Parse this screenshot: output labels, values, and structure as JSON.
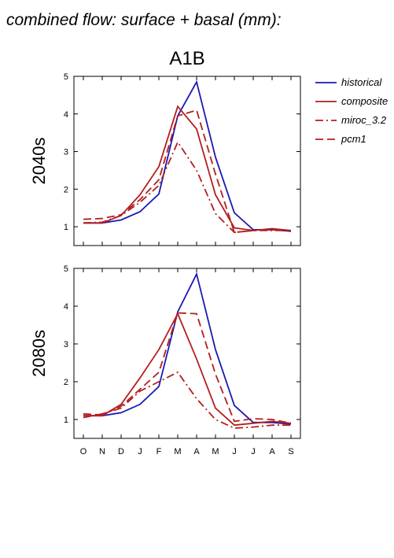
{
  "figure": {
    "title": "combined flow: surface + basal (mm):",
    "scenario": "A1B"
  },
  "legend": {
    "entries": [
      {
        "name": "historical",
        "color": "#1a1ab4",
        "dash": "solid"
      },
      {
        "name": "composite",
        "color": "#b41e1e",
        "dash": "solid"
      },
      {
        "name": "miroc_3.2",
        "color": "#b41e1e",
        "dash": "dashdot"
      },
      {
        "name": "pcm1",
        "color": "#b41e1e",
        "dash": "dash"
      }
    ]
  },
  "chart_data": [
    {
      "type": "line",
      "title": "2040s",
      "ylabel": "2040s",
      "categories": [
        "O",
        "N",
        "D",
        "J",
        "F",
        "M",
        "A",
        "M",
        "J",
        "J",
        "A",
        "S"
      ],
      "ylim": [
        0.5,
        5
      ],
      "yticks": [
        1,
        2,
        3,
        4,
        5
      ],
      "grid": false,
      "legend_position": "right",
      "series": [
        {
          "name": "historical",
          "values": [
            1.1,
            1.1,
            1.18,
            1.4,
            1.87,
            3.95,
            4.85,
            2.85,
            1.37,
            0.92,
            0.92,
            0.88
          ]
        },
        {
          "name": "composite",
          "values": [
            1.1,
            1.1,
            1.3,
            1.85,
            2.6,
            4.2,
            3.6,
            1.85,
            0.97,
            0.9,
            0.95,
            0.9
          ]
        },
        {
          "name": "miroc_3.2",
          "values": [
            1.1,
            1.12,
            1.3,
            1.65,
            2.1,
            3.25,
            2.5,
            1.35,
            0.85,
            0.9,
            0.9,
            0.9
          ]
        },
        {
          "name": "pcm1",
          "values": [
            1.2,
            1.22,
            1.32,
            1.72,
            2.25,
            3.95,
            4.1,
            2.4,
            0.85,
            0.9,
            0.92,
            0.9
          ]
        }
      ]
    },
    {
      "type": "line",
      "title": "2080s",
      "ylabel": "2080s",
      "categories": [
        "O",
        "N",
        "D",
        "J",
        "F",
        "M",
        "A",
        "M",
        "J",
        "J",
        "A",
        "S"
      ],
      "ylim": [
        0.5,
        5
      ],
      "yticks": [
        1,
        2,
        3,
        4,
        5
      ],
      "grid": false,
      "series": [
        {
          "name": "historical",
          "values": [
            1.1,
            1.1,
            1.18,
            1.4,
            1.87,
            3.85,
            4.85,
            2.85,
            1.37,
            0.92,
            0.92,
            0.88
          ]
        },
        {
          "name": "composite",
          "values": [
            1.1,
            1.1,
            1.4,
            2.1,
            2.85,
            3.8,
            2.6,
            1.3,
            0.85,
            0.9,
            0.95,
            0.9
          ]
        },
        {
          "name": "miroc_3.2",
          "values": [
            1.05,
            1.15,
            1.3,
            1.75,
            2.0,
            2.25,
            1.55,
            1.0,
            0.77,
            0.8,
            0.85,
            0.85
          ]
        },
        {
          "name": "pcm1",
          "values": [
            1.15,
            1.12,
            1.35,
            1.8,
            2.25,
            3.82,
            3.8,
            2.2,
            0.95,
            1.02,
            1.0,
            0.9
          ]
        }
      ]
    }
  ]
}
